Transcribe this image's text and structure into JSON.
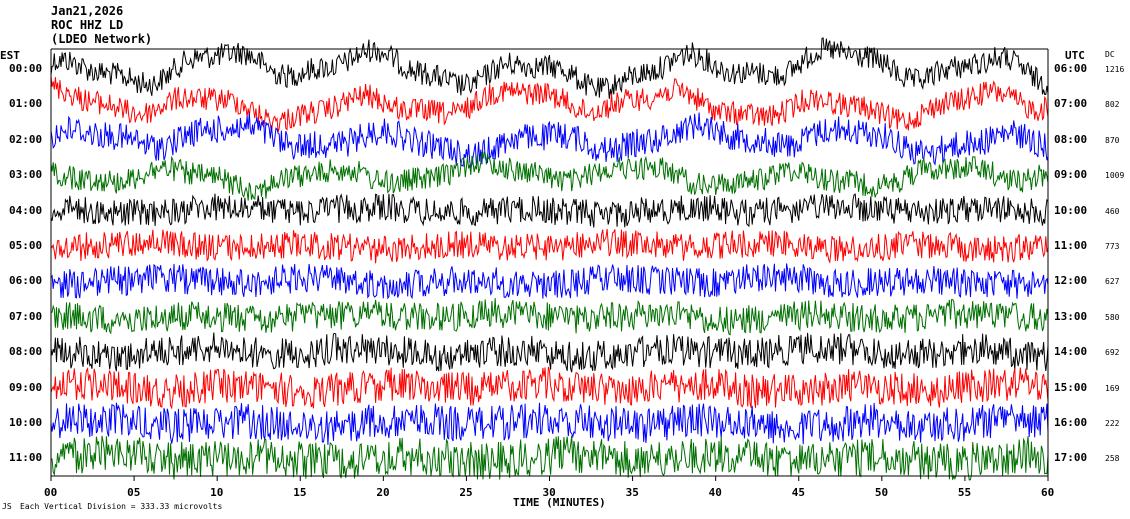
{
  "header": {
    "date": "Jan21,2026",
    "station": "ROC HHZ LD",
    "network": "(LDEO Network)"
  },
  "left_zone": "EST",
  "right_zone": "UTC",
  "dc_heading": "DC",
  "x_axis_title": "TIME (MINUTES)",
  "footer_note": "Each Vertical Division = 333.33 microvolts",
  "footer_mark": "JS",
  "chart_data": {
    "type": "line",
    "title": "",
    "xlabel": "TIME (MINUTES)",
    "xlim": [
      0,
      60
    ],
    "x_ticks": [
      "00",
      "05",
      "10",
      "15",
      "20",
      "25",
      "30",
      "35",
      "40",
      "45",
      "50",
      "55",
      "60"
    ],
    "trace_colors": [
      "#000000",
      "#ff0000",
      "#0000ff",
      "#007000"
    ],
    "rows": [
      {
        "est": "00:00",
        "utc": "06:00",
        "dc": "1216",
        "color": "#000000",
        "amp": 12,
        "slow": 22
      },
      {
        "est": "01:00",
        "utc": "07:00",
        "dc": "802",
        "color": "#ff0000",
        "amp": 12,
        "slow": 18
      },
      {
        "est": "02:00",
        "utc": "08:00",
        "dc": "870",
        "color": "#0000ff",
        "amp": 14,
        "slow": 16
      },
      {
        "est": "03:00",
        "utc": "09:00",
        "dc": "1009",
        "color": "#007000",
        "amp": 12,
        "slow": 14
      },
      {
        "est": "04:00",
        "utc": "10:00",
        "dc": "460",
        "color": "#000000",
        "amp": 14,
        "slow": 4
      },
      {
        "est": "05:00",
        "utc": "11:00",
        "dc": "773",
        "color": "#ff0000",
        "amp": 14,
        "slow": 4
      },
      {
        "est": "06:00",
        "utc": "12:00",
        "dc": "627",
        "color": "#0000ff",
        "amp": 15,
        "slow": 4
      },
      {
        "est": "07:00",
        "utc": "13:00",
        "dc": "580",
        "color": "#007000",
        "amp": 15,
        "slow": 4
      },
      {
        "est": "08:00",
        "utc": "14:00",
        "dc": "692",
        "color": "#000000",
        "amp": 16,
        "slow": 5
      },
      {
        "est": "09:00",
        "utc": "15:00",
        "dc": "169",
        "color": "#ff0000",
        "amp": 17,
        "slow": 5
      },
      {
        "est": "10:00",
        "utc": "16:00",
        "dc": "222",
        "color": "#0000ff",
        "amp": 18,
        "slow": 5
      },
      {
        "est": "11:00",
        "utc": "17:00",
        "dc": "258",
        "color": "#007000",
        "amp": 19,
        "slow": 5
      }
    ]
  }
}
